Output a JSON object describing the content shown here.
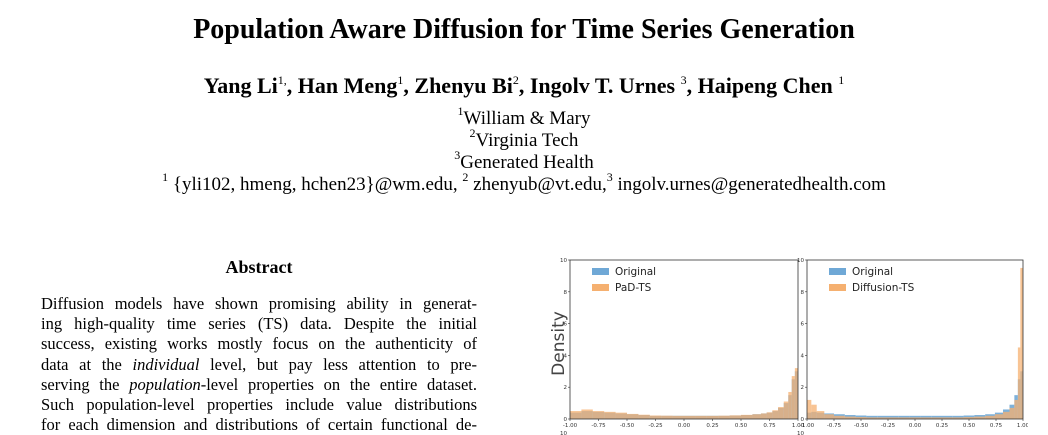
{
  "paper": {
    "title": "Population Aware Diffusion for Time Series Generation",
    "authors": [
      {
        "name": "Yang Li",
        "sup": "1,",
        "sep": ", "
      },
      {
        "name": "Han Meng",
        "sup": "1",
        "sep": ", "
      },
      {
        "name": "Zhenyu Bi",
        "sup": "2",
        "sep": ", "
      },
      {
        "name": "Ingolv T. Urnes ",
        "sup": "3",
        "sep": ", "
      },
      {
        "name": "Haipeng Chen ",
        "sup": "1",
        "sep": ""
      }
    ],
    "affiliations": [
      {
        "sup": "1",
        "text": "William & Mary"
      },
      {
        "sup": "2",
        "text": "Virginia Tech"
      },
      {
        "sup": "3",
        "text": "Generated Health"
      }
    ],
    "emails": {
      "sup1": "1",
      "text1": " {yli102, hmeng, hchen23}@wm.edu, ",
      "sup2": "2",
      "text2": " zhenyub@vt.edu,",
      "sup3": "3",
      "text3": " ingolv.urnes@generatedhealth.com"
    }
  },
  "abstract": {
    "heading": "Abstract",
    "lines": [
      [
        {
          "t": "Diffusion models have shown promising ability in generat-"
        }
      ],
      [
        {
          "t": "ing high-quality time series (TS) data. Despite the initial"
        }
      ],
      [
        {
          "t": "success, existing works mostly focus on the authenticity of"
        }
      ],
      [
        {
          "t": "data at the "
        },
        {
          "t": "individual",
          "i": true
        },
        {
          "t": " level, but pay less attention to pre-"
        }
      ],
      [
        {
          "t": "serving the "
        },
        {
          "t": "population",
          "i": true
        },
        {
          "t": "-level properties on the entire dataset."
        }
      ],
      [
        {
          "t": "Such population-level properties include value distributions"
        }
      ],
      [
        {
          "t": "for each dimension and distributions of certain functional de-"
        }
      ]
    ]
  },
  "chart_data": [
    {
      "type": "bar",
      "ylabel": "Density",
      "xlabel": "",
      "xlim": [
        -1.0,
        1.0
      ],
      "ylim": [
        0,
        10
      ],
      "xticks": [
        "-1.00",
        "-0.75",
        "-0.50",
        "-0.25",
        "0.00",
        "0.25",
        "0.50",
        "0.75",
        "1.00"
      ],
      "yticks": [
        "0",
        "2",
        "4",
        "6",
        "8",
        "10"
      ],
      "legend_position": "top-left",
      "x": [
        -0.95,
        -0.85,
        -0.75,
        -0.65,
        -0.55,
        -0.45,
        -0.35,
        -0.25,
        -0.15,
        -0.05,
        0.05,
        0.15,
        0.25,
        0.35,
        0.45,
        0.55,
        0.65,
        0.7,
        0.75,
        0.8,
        0.85,
        0.9,
        0.93,
        0.96,
        0.985
      ],
      "series": [
        {
          "name": "Original",
          "color": "#6fa8d6",
          "values": [
            0.4,
            0.5,
            0.45,
            0.4,
            0.35,
            0.3,
            0.25,
            0.2,
            0.2,
            0.2,
            0.2,
            0.2,
            0.2,
            0.2,
            0.22,
            0.25,
            0.3,
            0.35,
            0.4,
            0.5,
            0.7,
            1.0,
            1.5,
            2.5,
            3.0
          ]
        },
        {
          "name": "PaD-TS",
          "color": "#f5b070",
          "values": [
            0.5,
            0.6,
            0.5,
            0.45,
            0.4,
            0.32,
            0.27,
            0.22,
            0.21,
            0.2,
            0.2,
            0.2,
            0.2,
            0.21,
            0.23,
            0.26,
            0.3,
            0.35,
            0.42,
            0.55,
            0.75,
            1.1,
            1.7,
            2.7,
            3.2
          ]
        }
      ]
    },
    {
      "type": "bar",
      "ylabel": "",
      "xlabel": "",
      "xlim": [
        -1.0,
        1.0
      ],
      "ylim": [
        0,
        10
      ],
      "xticks": [
        "-1.00",
        "-0.75",
        "-0.50",
        "-0.25",
        "0.00",
        "0.25",
        "0.50",
        "0.75",
        "1.00"
      ],
      "yticks": [
        "0",
        "2",
        "4",
        "6",
        "8",
        "10"
      ],
      "legend_position": "top-left",
      "x": [
        -0.98,
        -0.94,
        -0.88,
        -0.8,
        -0.7,
        -0.6,
        -0.5,
        -0.4,
        -0.3,
        -0.2,
        -0.1,
        0.0,
        0.1,
        0.2,
        0.3,
        0.4,
        0.5,
        0.6,
        0.7,
        0.78,
        0.85,
        0.9,
        0.94,
        0.965,
        0.985
      ],
      "series": [
        {
          "name": "Original",
          "color": "#6fa8d6",
          "values": [
            0.4,
            0.45,
            0.4,
            0.35,
            0.3,
            0.25,
            0.22,
            0.2,
            0.2,
            0.2,
            0.2,
            0.2,
            0.2,
            0.2,
            0.2,
            0.2,
            0.22,
            0.25,
            0.3,
            0.4,
            0.6,
            0.9,
            1.5,
            2.5,
            3.0
          ]
        },
        {
          "name": "Diffusion-TS",
          "color": "#f5b070",
          "values": [
            1.2,
            0.9,
            0.5,
            0.3,
            0.2,
            0.15,
            0.12,
            0.1,
            0.1,
            0.1,
            0.1,
            0.1,
            0.1,
            0.1,
            0.1,
            0.1,
            0.12,
            0.15,
            0.2,
            0.3,
            0.45,
            0.7,
            1.2,
            4.5,
            9.5
          ]
        }
      ]
    }
  ]
}
